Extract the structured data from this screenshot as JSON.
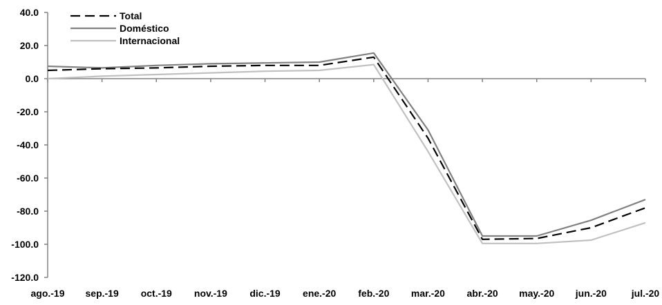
{
  "chart_data": {
    "type": "line",
    "title": "",
    "xlabel": "",
    "ylabel": "",
    "categories": [
      "ago.-19",
      "sep.-19",
      "oct.-19",
      "nov.-19",
      "dic.-19",
      "ene.-20",
      "feb.-20",
      "mar.-20",
      "abr.-20",
      "may.-20",
      "jun.-20",
      "jul.-20"
    ],
    "ylim": [
      -120,
      40
    ],
    "yticks": [
      40,
      20,
      0,
      -20,
      -40,
      -60,
      -80,
      -100,
      -120
    ],
    "ytick_labels": [
      "40.0",
      "20.0",
      "0.0",
      "-20.0",
      "-40.0",
      "-60.0",
      "-80.0",
      "-100.0",
      "-120.0"
    ],
    "grid": false,
    "legend_position": "top-left",
    "series": [
      {
        "name": "Total",
        "style": "dashed",
        "color": "#000000",
        "values": [
          5,
          6,
          6.5,
          7.5,
          8,
          8,
          13,
          -36,
          -97,
          -96.5,
          -90,
          -78
        ]
      },
      {
        "name": "Doméstico",
        "style": "solid",
        "color": "#808080",
        "values": [
          7.5,
          6.5,
          8,
          9,
          9.5,
          10,
          15.5,
          -31,
          -95,
          -95,
          -85.5,
          -73
        ]
      },
      {
        "name": "Internacional",
        "style": "solid",
        "color": "#c0c0c0",
        "values": [
          0,
          1.5,
          2.5,
          3.5,
          4.5,
          5,
          8.5,
          -44,
          -99.5,
          -99.5,
          -97.5,
          -87
        ]
      }
    ]
  }
}
